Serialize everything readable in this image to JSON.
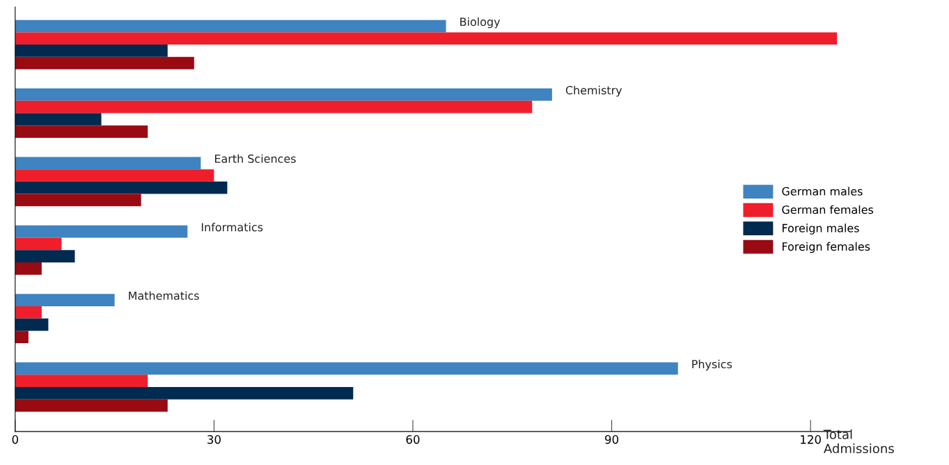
{
  "chart_data": {
    "type": "bar",
    "orientation": "horizontal",
    "xlabel": "Total\nAdmissions",
    "categories": [
      "Biology",
      "Chemistry",
      "Earth Sciences",
      "Informatics",
      "Mathematics",
      "Physics"
    ],
    "series": [
      {
        "name": "German males",
        "color": "#3f83c0",
        "values": [
          65,
          81,
          28,
          26,
          15,
          100
        ]
      },
      {
        "name": "German females",
        "color": "#ee1f2b",
        "values": [
          124,
          78,
          30,
          7,
          4,
          20
        ]
      },
      {
        "name": "Foreign males",
        "color": "#002a50",
        "values": [
          23,
          13,
          32,
          9,
          5,
          51
        ]
      },
      {
        "name": "Foreign females",
        "color": "#9a0a12",
        "values": [
          27,
          20,
          19,
          4,
          2,
          23
        ]
      }
    ],
    "xlim": [
      0,
      126
    ],
    "xticks": [
      0,
      30,
      60,
      90,
      120
    ],
    "grid": false,
    "legend": "right",
    "tick_labels": "x"
  }
}
